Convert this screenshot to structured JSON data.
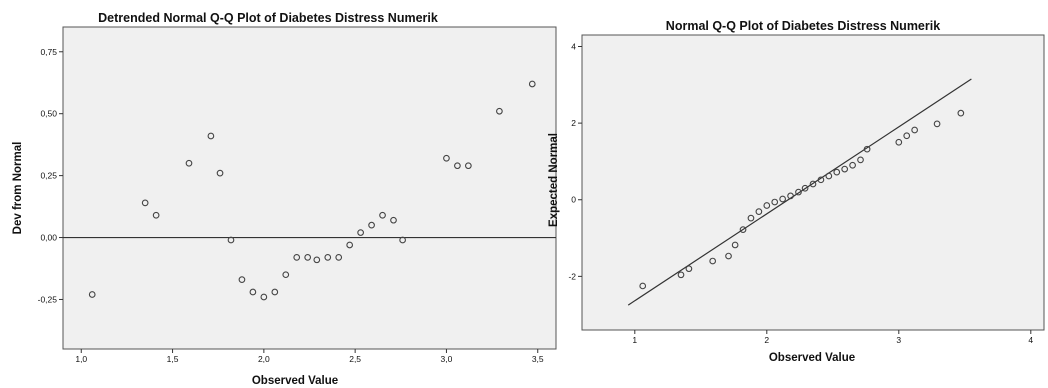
{
  "chart_data": [
    {
      "type": "scatter",
      "title": "Detrended Normal Q-Q Plot of Diabetes Distress Numerik",
      "xlabel": "Observed Value",
      "ylabel": "Dev from Normal",
      "xlim": [
        0.9,
        3.6
      ],
      "ylim": [
        -0.45,
        0.85
      ],
      "xticks": [
        1.0,
        1.5,
        2.0,
        2.5,
        3.0,
        3.5
      ],
      "xtick_labels": [
        "1,0",
        "1,5",
        "2,0",
        "2,5",
        "3,0",
        "3,5"
      ],
      "yticks": [
        -0.25,
        0.0,
        0.25,
        0.5,
        0.75
      ],
      "ytick_labels": [
        "-0,25",
        "0,00",
        "0,25",
        "0,50",
        "0,75"
      ],
      "reference_line": {
        "y": 0
      },
      "plot_background": "#f0f0f0",
      "marker": "open-circle",
      "points": [
        {
          "x": 1.06,
          "y": -0.23
        },
        {
          "x": 1.35,
          "y": 0.14
        },
        {
          "x": 1.41,
          "y": 0.09
        },
        {
          "x": 1.59,
          "y": 0.3
        },
        {
          "x": 1.71,
          "y": 0.41
        },
        {
          "x": 1.76,
          "y": 0.26
        },
        {
          "x": 1.82,
          "y": -0.01
        },
        {
          "x": 1.88,
          "y": -0.17
        },
        {
          "x": 1.94,
          "y": -0.22
        },
        {
          "x": 2.0,
          "y": -0.24
        },
        {
          "x": 2.06,
          "y": -0.22
        },
        {
          "x": 2.12,
          "y": -0.15
        },
        {
          "x": 2.18,
          "y": -0.08
        },
        {
          "x": 2.24,
          "y": -0.08
        },
        {
          "x": 2.29,
          "y": -0.09
        },
        {
          "x": 2.35,
          "y": -0.08
        },
        {
          "x": 2.41,
          "y": -0.08
        },
        {
          "x": 2.47,
          "y": -0.03
        },
        {
          "x": 2.53,
          "y": 0.02
        },
        {
          "x": 2.59,
          "y": 0.05
        },
        {
          "x": 2.65,
          "y": 0.09
        },
        {
          "x": 2.71,
          "y": 0.07
        },
        {
          "x": 2.76,
          "y": -0.01
        },
        {
          "x": 3.0,
          "y": 0.32
        },
        {
          "x": 3.06,
          "y": 0.29
        },
        {
          "x": 3.12,
          "y": 0.29
        },
        {
          "x": 3.29,
          "y": 0.51
        },
        {
          "x": 3.47,
          "y": 0.62
        }
      ]
    },
    {
      "type": "scatter",
      "title": "Normal Q-Q Plot of Diabetes Distress Numerik",
      "xlabel": "Observed Value",
      "ylabel": "Expected Normal",
      "xlim": [
        0.6,
        4.1
      ],
      "ylim": [
        -3.4,
        4.3
      ],
      "xticks": [
        1,
        2,
        3,
        4
      ],
      "xtick_labels": [
        "1",
        "2",
        "3",
        "4"
      ],
      "yticks": [
        -2,
        0,
        2,
        4
      ],
      "ytick_labels": [
        "-2",
        "0",
        "2",
        "4"
      ],
      "reference_line": {
        "x": [
          0.95,
          3.55
        ],
        "y": [
          -2.75,
          3.15
        ]
      },
      "plot_background": "#f0f0f0",
      "marker": "open-circle",
      "points": [
        {
          "x": 1.06,
          "y": -2.25
        },
        {
          "x": 1.35,
          "y": -1.96
        },
        {
          "x": 1.41,
          "y": -1.8
        },
        {
          "x": 1.59,
          "y": -1.6
        },
        {
          "x": 1.71,
          "y": -1.47
        },
        {
          "x": 1.76,
          "y": -1.18
        },
        {
          "x": 1.82,
          "y": -0.78
        },
        {
          "x": 1.88,
          "y": -0.48
        },
        {
          "x": 1.94,
          "y": -0.31
        },
        {
          "x": 2.0,
          "y": -0.15
        },
        {
          "x": 2.06,
          "y": -0.06
        },
        {
          "x": 2.12,
          "y": 0.02
        },
        {
          "x": 2.18,
          "y": 0.1
        },
        {
          "x": 2.24,
          "y": 0.2
        },
        {
          "x": 2.29,
          "y": 0.3
        },
        {
          "x": 2.35,
          "y": 0.41
        },
        {
          "x": 2.41,
          "y": 0.52
        },
        {
          "x": 2.47,
          "y": 0.62
        },
        {
          "x": 2.53,
          "y": 0.72
        },
        {
          "x": 2.59,
          "y": 0.8
        },
        {
          "x": 2.65,
          "y": 0.9
        },
        {
          "x": 2.71,
          "y": 1.04
        },
        {
          "x": 2.76,
          "y": 1.32
        },
        {
          "x": 3.0,
          "y": 1.5
        },
        {
          "x": 3.06,
          "y": 1.67
        },
        {
          "x": 3.12,
          "y": 1.82
        },
        {
          "x": 3.29,
          "y": 1.98
        },
        {
          "x": 3.47,
          "y": 2.26
        }
      ]
    }
  ]
}
